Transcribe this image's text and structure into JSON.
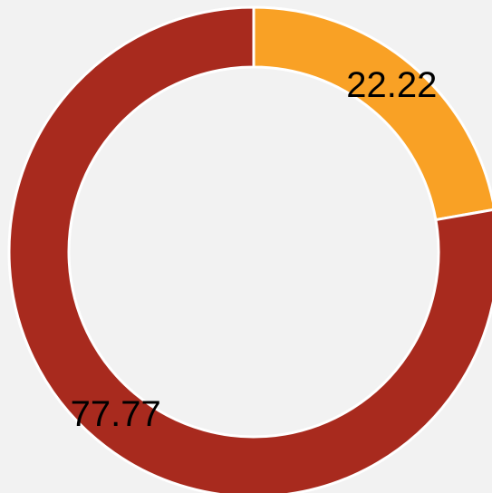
{
  "chart_data": {
    "type": "donut",
    "values": [
      22.22,
      77.77
    ],
    "colors": [
      "#f9a125",
      "#a82a1e"
    ]
  }
}
